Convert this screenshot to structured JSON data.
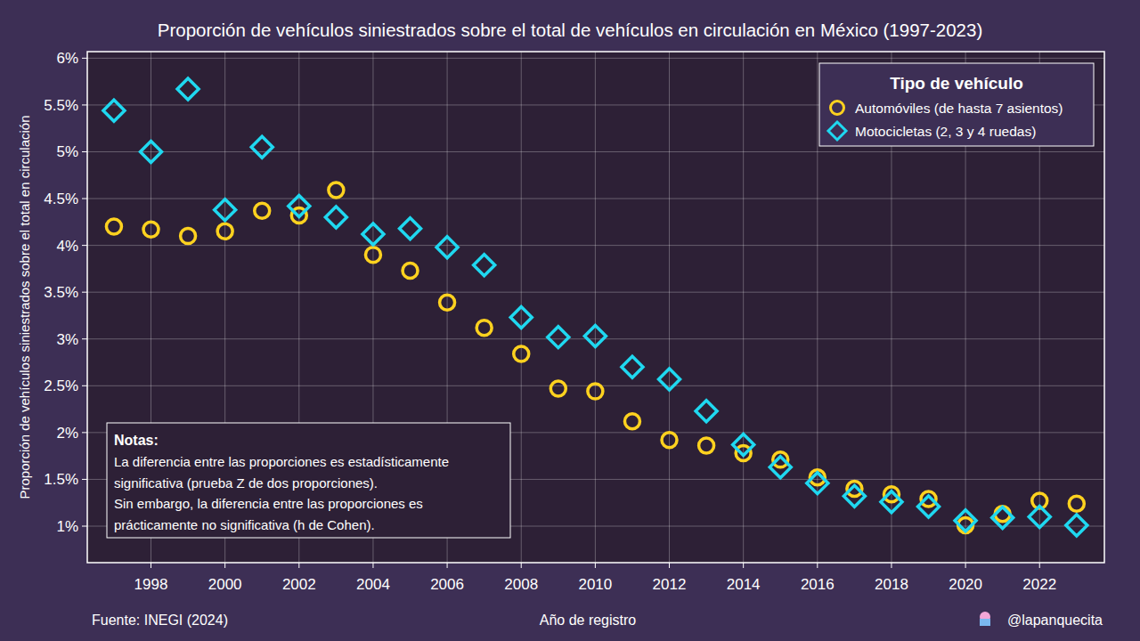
{
  "chart_data": {
    "type": "scatter",
    "title": "Proporción de vehículos siniestrados sobre el total de vehículos en circulación en México (1997-2023)",
    "x_label": "Año de registro",
    "y_label": "Proporción de vehículos siniestrados sobre el total en circulación",
    "source": "Fuente: INEGI (2024)",
    "credit": "@lapanquecita",
    "legend_title": "Tipo de vehículo",
    "legend": "upper right",
    "grid": true,
    "notes_title": "Notas:",
    "notes": [
      "La diferencia entre las proporciones es estadísticamente",
      "significativa (prueba Z de dos proporciones).",
      "Sin embargo, la diferencia entre las proporciones es",
      "prácticamente no significativa (h de Cohen)."
    ],
    "x": [
      1997,
      1998,
      1999,
      2000,
      2001,
      2002,
      2003,
      2004,
      2005,
      2006,
      2007,
      2008,
      2009,
      2010,
      2011,
      2012,
      2013,
      2014,
      2015,
      2016,
      2017,
      2018,
      2019,
      2020,
      2021,
      2022,
      2023
    ],
    "xlim": [
      1996.28,
      2023.75
    ],
    "xticks": [
      1998,
      2000,
      2002,
      2004,
      2006,
      2008,
      2010,
      2012,
      2014,
      2016,
      2018,
      2020,
      2022
    ],
    "ylim": [
      0.61,
      6.07
    ],
    "yticks": [
      {
        "value": 1,
        "label": "1%"
      },
      {
        "value": 1.5,
        "label": "1.5%"
      },
      {
        "value": 2,
        "label": "2%"
      },
      {
        "value": 2.5,
        "label": "2.5%"
      },
      {
        "value": 3,
        "label": "3%"
      },
      {
        "value": 3.5,
        "label": "3.5%"
      },
      {
        "value": 4,
        "label": "4%"
      },
      {
        "value": 4.5,
        "label": "4.5%"
      },
      {
        "value": 5,
        "label": "5%"
      },
      {
        "value": 5.5,
        "label": "5.5%"
      },
      {
        "value": 6,
        "label": "6%"
      }
    ],
    "series": [
      {
        "name": "Automóviles (de hasta 7 asientos)",
        "color": "#ffd21f",
        "marker": "circle",
        "values": [
          4.2,
          4.17,
          4.1,
          4.15,
          4.37,
          4.32,
          4.59,
          3.9,
          3.73,
          3.39,
          3.12,
          2.84,
          2.47,
          2.44,
          2.12,
          1.92,
          1.86,
          1.78,
          1.71,
          1.52,
          1.4,
          1.34,
          1.29,
          1.01,
          1.13,
          1.27,
          1.24
        ]
      },
      {
        "name": "Motocicletas (2, 3 y 4 ruedas)",
        "color": "#1fd8f0",
        "marker": "diamond",
        "values": [
          5.44,
          5.0,
          5.67,
          4.38,
          5.05,
          4.42,
          4.3,
          4.12,
          4.18,
          3.98,
          3.79,
          3.23,
          3.02,
          3.03,
          2.7,
          2.57,
          2.23,
          1.87,
          1.63,
          1.46,
          1.32,
          1.26,
          1.21,
          1.06,
          1.09,
          1.1,
          1.01
        ]
      }
    ]
  }
}
